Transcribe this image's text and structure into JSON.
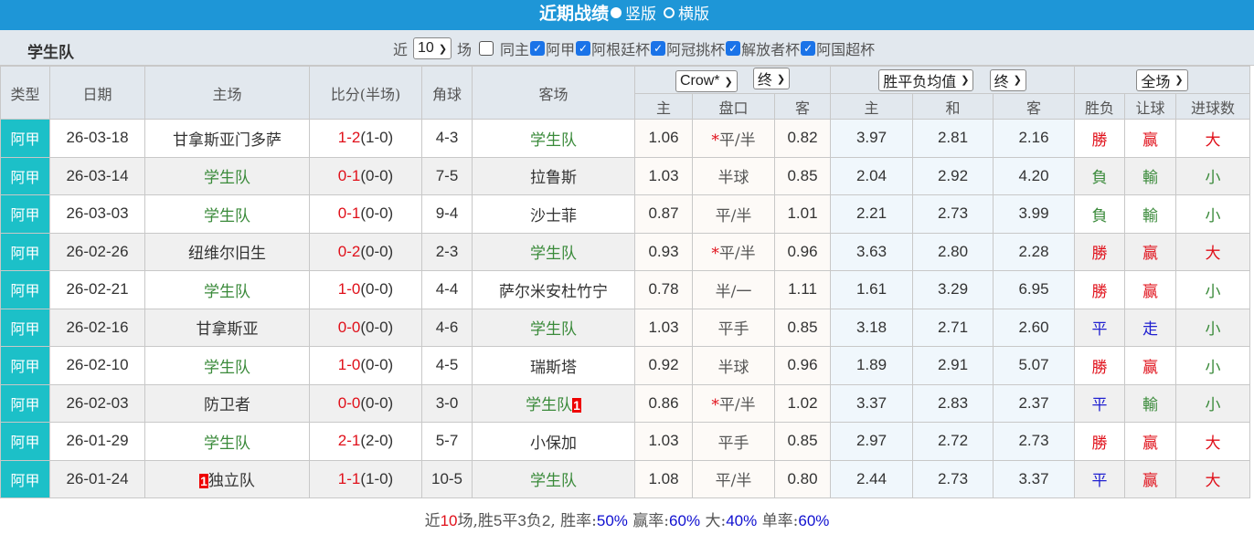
{
  "title": "近期战绩",
  "layout_options": [
    {
      "label": "竖版",
      "selected": true
    },
    {
      "label": "横版",
      "selected": false
    }
  ],
  "team": "学生队",
  "filter": {
    "near_label": "近",
    "count": "10",
    "games_label": "场",
    "same_home_label": "同主",
    "same_home_checked": false,
    "competitions": [
      {
        "label": "阿甲",
        "checked": true
      },
      {
        "label": "阿根廷杯",
        "checked": true
      },
      {
        "label": "阿冠挑杯",
        "checked": true
      },
      {
        "label": "解放者杯",
        "checked": true
      },
      {
        "label": "阿国超杯",
        "checked": true
      }
    ]
  },
  "headers": {
    "type": "类型",
    "date": "日期",
    "home": "主场",
    "score": "比分(半场)",
    "corner": "角球",
    "away": "客场",
    "handicap_company": "Crow*",
    "handicap_stage": "终",
    "odds_type": "胜平负均值",
    "odds_stage": "终",
    "period": "全场",
    "h_home": "主",
    "h_line": "盘口",
    "h_away": "客",
    "o_home": "主",
    "o_draw": "和",
    "o_away": "客",
    "res_wl": "胜负",
    "res_hc": "让球",
    "res_ou": "进球数"
  },
  "rows": [
    {
      "type": "阿甲",
      "date": "26-03-18",
      "home": "甘拿斯亚门多萨",
      "away": "学生队",
      "team_side": "away",
      "score": "1-2",
      "half": "(1-0)",
      "corner": "4-3",
      "h_home": "1.06",
      "star": "*",
      "line": "平/半",
      "h_away": "0.82",
      "o_home": "3.97",
      "o_draw": "2.81",
      "o_away": "2.16",
      "wl": "勝",
      "hc": "赢",
      "ou": "大"
    },
    {
      "type": "阿甲",
      "date": "26-03-14",
      "home": "学生队",
      "away": "拉鲁斯",
      "team_side": "home",
      "score": "0-1",
      "half": "(0-0)",
      "corner": "7-5",
      "h_home": "1.03",
      "star": "",
      "line": "半球",
      "h_away": "0.85",
      "o_home": "2.04",
      "o_draw": "2.92",
      "o_away": "4.20",
      "wl": "負",
      "hc": "輸",
      "ou": "小"
    },
    {
      "type": "阿甲",
      "date": "26-03-03",
      "home": "学生队",
      "away": "沙士菲",
      "team_side": "home",
      "score": "0-1",
      "half": "(0-0)",
      "corner": "9-4",
      "h_home": "0.87",
      "star": "",
      "line": "平/半",
      "h_away": "1.01",
      "o_home": "2.21",
      "o_draw": "2.73",
      "o_away": "3.99",
      "wl": "負",
      "hc": "輸",
      "ou": "小"
    },
    {
      "type": "阿甲",
      "date": "26-02-26",
      "home": "纽维尔旧生",
      "away": "学生队",
      "team_side": "away",
      "score": "0-2",
      "half": "(0-0)",
      "corner": "2-3",
      "h_home": "0.93",
      "star": "*",
      "line": "平/半",
      "h_away": "0.96",
      "o_home": "3.63",
      "o_draw": "2.80",
      "o_away": "2.28",
      "wl": "勝",
      "hc": "赢",
      "ou": "大"
    },
    {
      "type": "阿甲",
      "date": "26-02-21",
      "home": "学生队",
      "away": "萨尔米安杜竹宁",
      "team_side": "home",
      "score": "1-0",
      "half": "(0-0)",
      "corner": "4-4",
      "h_home": "0.78",
      "star": "",
      "line": "半/一",
      "h_away": "1.11",
      "o_home": "1.61",
      "o_draw": "3.29",
      "o_away": "6.95",
      "wl": "勝",
      "hc": "赢",
      "ou": "小"
    },
    {
      "type": "阿甲",
      "date": "26-02-16",
      "home": "甘拿斯亚",
      "away": "学生队",
      "team_side": "away",
      "score": "0-0",
      "half": "(0-0)",
      "corner": "4-6",
      "h_home": "1.03",
      "star": "",
      "line": "平手",
      "h_away": "0.85",
      "o_home": "3.18",
      "o_draw": "2.71",
      "o_away": "2.60",
      "wl": "平",
      "hc": "走",
      "ou": "小"
    },
    {
      "type": "阿甲",
      "date": "26-02-10",
      "home": "学生队",
      "away": "瑞斯塔",
      "team_side": "home",
      "score": "1-0",
      "half": "(0-0)",
      "corner": "4-5",
      "h_home": "0.92",
      "star": "",
      "line": "半球",
      "h_away": "0.96",
      "o_home": "1.89",
      "o_draw": "2.91",
      "o_away": "5.07",
      "wl": "勝",
      "hc": "赢",
      "ou": "小"
    },
    {
      "type": "阿甲",
      "date": "26-02-03",
      "home": "防卫者",
      "away": "学生队",
      "team_side": "away",
      "away_badge": "1",
      "score": "0-0",
      "half": "(0-0)",
      "corner": "3-0",
      "h_home": "0.86",
      "star": "*",
      "line": "平/半",
      "h_away": "1.02",
      "o_home": "3.37",
      "o_draw": "2.83",
      "o_away": "2.37",
      "wl": "平",
      "hc": "輸",
      "ou": "小"
    },
    {
      "type": "阿甲",
      "date": "26-01-29",
      "home": "学生队",
      "away": "小保加",
      "team_side": "home",
      "score": "2-1",
      "half": "(2-0)",
      "corner": "5-7",
      "h_home": "1.03",
      "star": "",
      "line": "平手",
      "h_away": "0.85",
      "o_home": "2.97",
      "o_draw": "2.72",
      "o_away": "2.73",
      "wl": "勝",
      "hc": "赢",
      "ou": "大"
    },
    {
      "type": "阿甲",
      "date": "26-01-24",
      "home": "独立队",
      "home_badge": "1",
      "away": "学生队",
      "team_side": "away",
      "score": "1-1",
      "half": "(1-0)",
      "corner": "10-5",
      "h_home": "1.08",
      "star": "",
      "line": "平/半",
      "h_away": "0.80",
      "o_home": "2.44",
      "o_draw": "2.73",
      "o_away": "3.37",
      "wl": "平",
      "hc": "赢",
      "ou": "大"
    }
  ],
  "summary": {
    "p1": "近",
    "games": "10",
    "p2": "场,胜",
    "win": "5",
    "p3": "平",
    "draw": "3",
    "p4": "负",
    "loss": "2",
    "p5": ", 胜率:",
    "win_rate": "50%",
    "p6": " 赢率:",
    "hc_rate": "60%",
    "p7": " 大:",
    "over_rate": "40%",
    "p8": " 单率:",
    "odd_rate": "60%"
  },
  "colors": {
    "title_bar": "#1e96d7",
    "type_cell": "#1cc0c8",
    "win": "#e0101a",
    "loss": "#3a8a3a",
    "draw": "#2020d0",
    "team": "#3a8a3a"
  }
}
